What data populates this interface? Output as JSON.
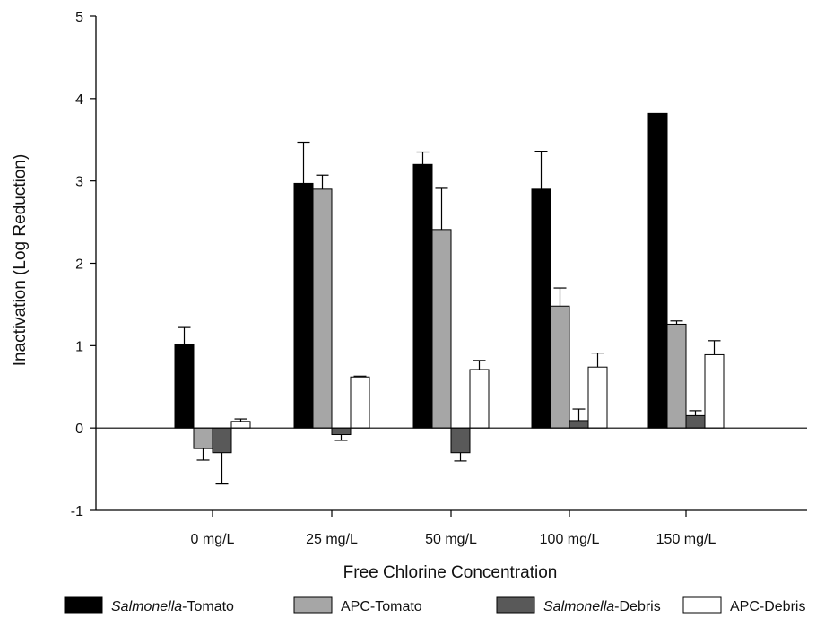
{
  "chart_data": {
    "type": "bar",
    "title": "",
    "xlabel": "Free Chlorine Concentration",
    "ylabel": "Inactivation (Log Reduction)",
    "ylim": [
      -1,
      5
    ],
    "yticks": [
      "-1",
      "0",
      "1",
      "2",
      "3",
      "4",
      "5"
    ],
    "categories": [
      "0 mg/L",
      "25 mg/L",
      "50 mg/L",
      "100 mg/L",
      "150 mg/L"
    ],
    "grid": false,
    "legend_position": "bottom",
    "series": [
      {
        "name": "Salmonella-Tomato",
        "legend_italic": "Salmonella",
        "legend_rest": "-Tomato",
        "color": "#000000",
        "values": [
          1.02,
          2.97,
          3.2,
          2.9,
          3.82
        ],
        "errors": [
          0.2,
          0.5,
          0.15,
          0.46,
          0
        ]
      },
      {
        "name": "APC-Tomato",
        "legend_italic": "",
        "legend_rest": "APC-Tomato",
        "color": "#a6a6a6",
        "values": [
          -0.25,
          2.9,
          2.41,
          1.48,
          1.26
        ],
        "errors": [
          0.14,
          0.17,
          0.5,
          0.22,
          0.04
        ]
      },
      {
        "name": "Salmonella-Debris",
        "legend_italic": "Salmonella",
        "legend_rest": "-Debris",
        "color": "#595959",
        "values": [
          -0.3,
          -0.08,
          -0.3,
          0.09,
          0.15
        ],
        "errors": [
          0.38,
          0.07,
          0.1,
          0.14,
          0.06
        ]
      },
      {
        "name": "APC-Debris",
        "legend_italic": "",
        "legend_rest": "APC-Debris",
        "color": "#ffffff",
        "values": [
          0.08,
          0.62,
          0.71,
          0.74,
          0.89
        ],
        "errors": [
          0.03,
          0.01,
          0.11,
          0.17,
          0.17
        ]
      }
    ]
  }
}
